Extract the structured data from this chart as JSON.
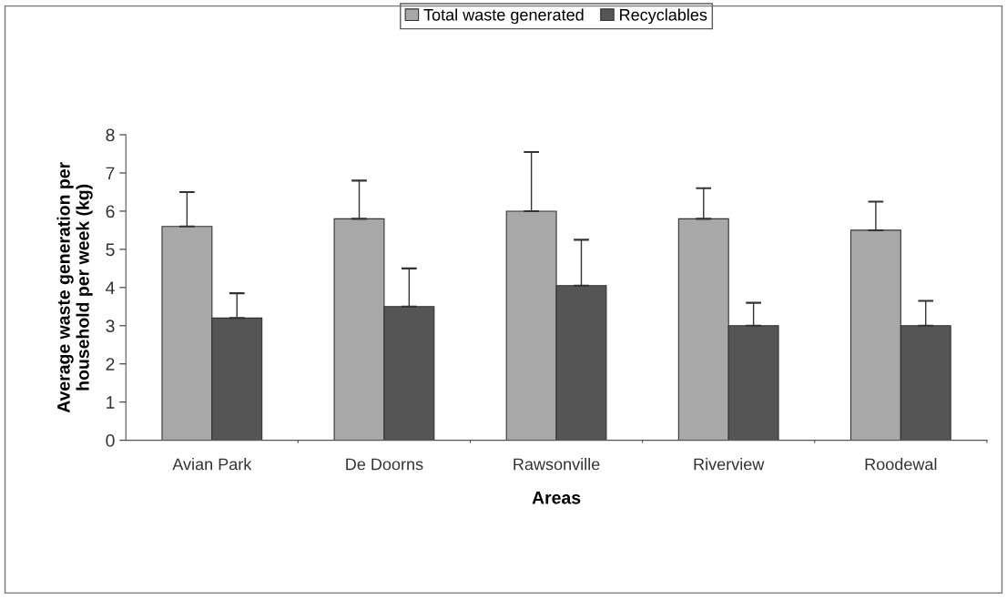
{
  "chart_data": {
    "type": "bar",
    "xlabel": "Areas",
    "ylabel": "Average waste generation per\nhousehold per week (kg)",
    "categories": [
      "Avian Park",
      "De Doorns",
      "Rawsonville",
      "Riverview",
      "Roodewal"
    ],
    "series": [
      {
        "name": "Total waste generated",
        "color": "#a8a8a8",
        "values": [
          5.6,
          5.8,
          6.0,
          5.8,
          5.5
        ],
        "errors": [
          [
            5.6,
            6.5
          ],
          [
            5.8,
            6.8
          ],
          [
            6.0,
            7.55
          ],
          [
            5.8,
            6.6
          ],
          [
            5.5,
            6.25
          ]
        ]
      },
      {
        "name": "Recyclables",
        "color": "#555555",
        "values": [
          3.2,
          3.5,
          4.05,
          3.0,
          3.0
        ],
        "errors": [
          [
            3.2,
            3.85
          ],
          [
            3.5,
            4.5
          ],
          [
            4.05,
            5.25
          ],
          [
            3.0,
            3.6
          ],
          [
            3.0,
            3.65
          ]
        ]
      }
    ],
    "ylim": [
      0,
      8
    ],
    "yticks": [
      0,
      1,
      2,
      3,
      4,
      5,
      6,
      7,
      8
    ],
    "grid": false,
    "legend": "top"
  }
}
